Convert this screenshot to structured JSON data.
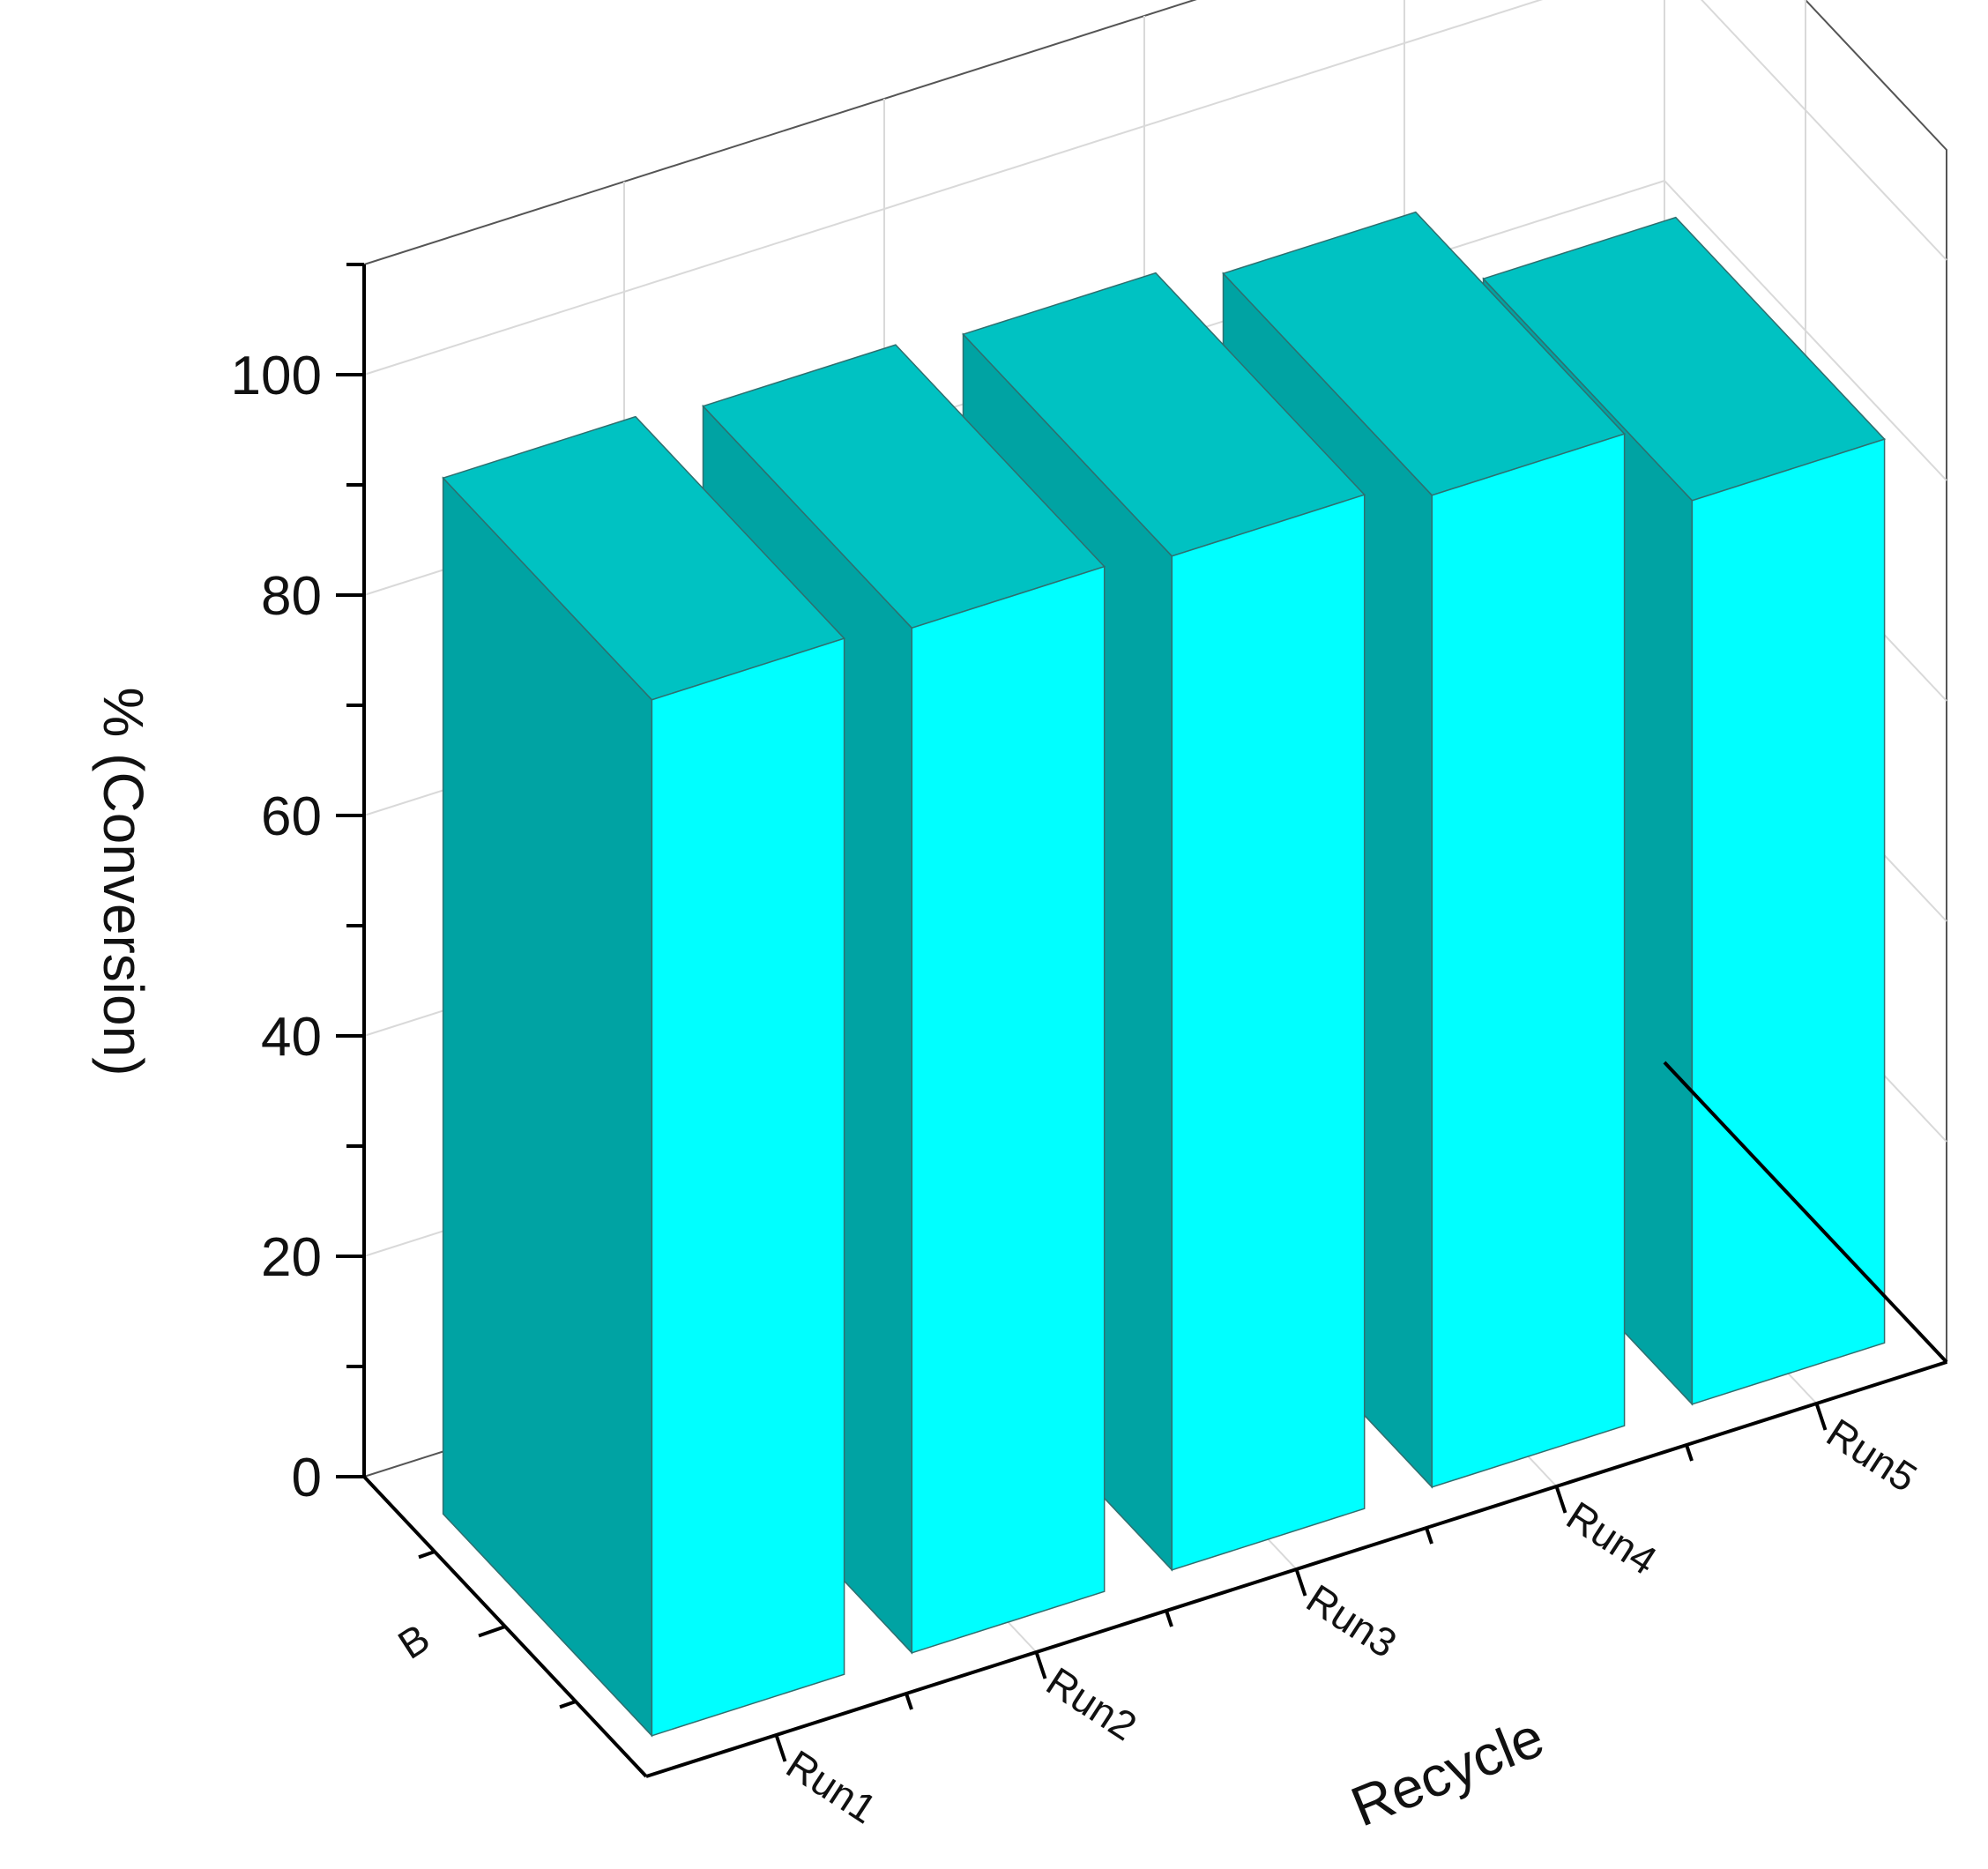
{
  "chart_data": {
    "type": "bar",
    "categories": [
      "Run1",
      "Run2",
      "Run3",
      "Run4",
      "Run5"
    ],
    "series": [
      {
        "values": [
          94,
          93,
          92,
          90,
          82
        ]
      }
    ],
    "series_axis_label": "B",
    "xlabel": "Recycle",
    "ylabel": "% (Conversion)",
    "ylim": [
      0,
      110
    ],
    "yticks": [
      0,
      20,
      40,
      60,
      80,
      100
    ],
    "grid": true,
    "style": "3d",
    "colors": {
      "bar_front": "#00FFFF",
      "bar_side": "#00A3A3",
      "bar_top": "#00C2C2",
      "edge": "#2f6f6f",
      "axis": "#000000",
      "grid": "#d9d9d9"
    }
  }
}
